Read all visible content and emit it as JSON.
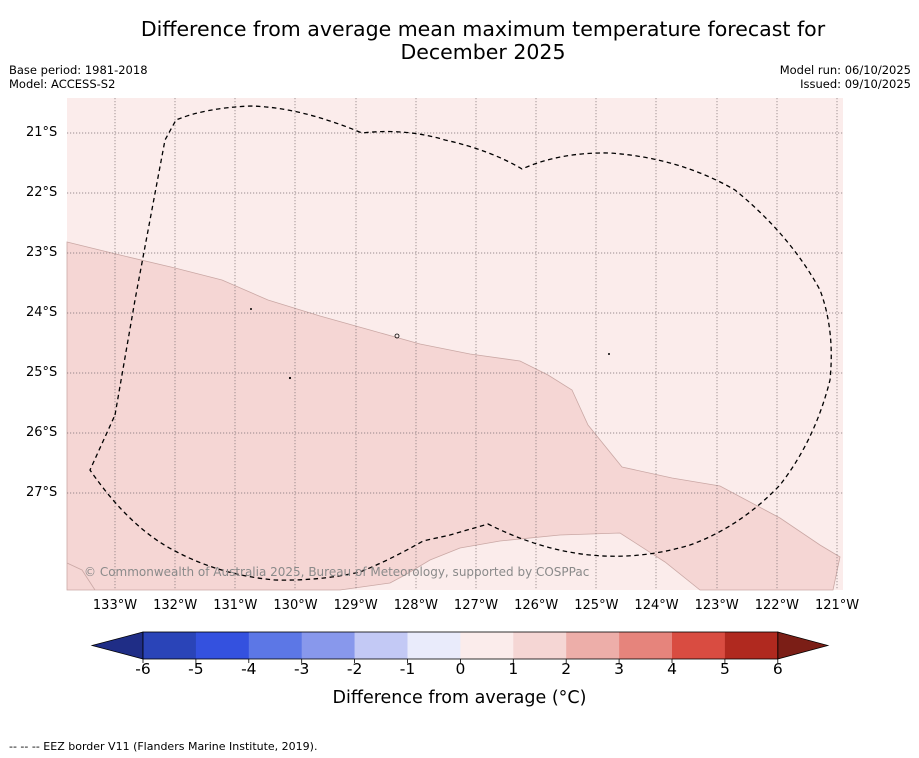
{
  "title": "Difference from average mean maximum temperature forecast for\nDecember 2025",
  "title_line1": "Difference from average mean maximum temperature forecast for",
  "title_line2": "December 2025",
  "meta_left": {
    "base_period": "Base period: 1981-2018",
    "model": "Model: ACCESS-S2"
  },
  "meta_right": {
    "model_run": "Model run: 06/10/2025",
    "issued": "Issued: 09/10/2025"
  },
  "copyright": "© Commonwealth of Australia 2025, Bureau of Meteorology, supported by COSPPac",
  "lat_labels": [
    "21°S",
    "22°S",
    "23°S",
    "24°S",
    "25°S",
    "26°S",
    "27°S"
  ],
  "lon_labels": [
    "133°W",
    "132°W",
    "131°W",
    "130°W",
    "129°W",
    "128°W",
    "127°W",
    "126°W",
    "125°W",
    "124°W",
    "123°W",
    "122°W",
    "121°W"
  ],
  "colorbar": {
    "title": "Difference from average (°C)",
    "ticks": [
      "-6",
      "-5",
      "-4",
      "-3",
      "-2",
      "-1",
      "0",
      "1",
      "2",
      "3",
      "4",
      "5",
      "6"
    ],
    "colors": [
      "#1f2d86",
      "#2a44b8",
      "#3451df",
      "#5c77e6",
      "#8898ec",
      "#c3c9f5",
      "#e9ebfb",
      "#fbeceb",
      "#f5d6d4",
      "#edaea9",
      "#e6847c",
      "#d94c41",
      "#b0291f",
      "#7b1e16"
    ]
  },
  "legend": {
    "map_background": "#fbeceb",
    "anomaly_fill": "#f5d6d4"
  },
  "footnote": "-- -- -- EEZ border V11 (Flanders Marine Institute, 2019)."
}
